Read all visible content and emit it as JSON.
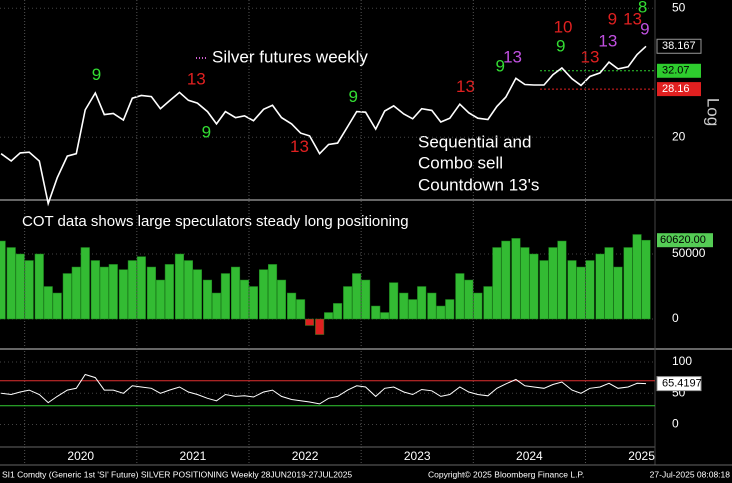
{
  "chart_data": [
    {
      "type": "line",
      "title": "Silver futures weekly",
      "title_marker_color": "#d060d0",
      "log": true,
      "scale_label": "Log",
      "color": "#ffffff",
      "note_lines": [
        "Sequential and",
        "Combo sell",
        "Countdown 13's"
      ],
      "xlim": [
        2019.78,
        2025.62
      ],
      "ylim": [
        13,
        53
      ],
      "yticks": [
        20,
        50
      ],
      "x": [
        2019.79,
        2019.88,
        2019.96,
        2020.04,
        2020.13,
        2020.21,
        2020.29,
        2020.38,
        2020.46,
        2020.54,
        2020.63,
        2020.71,
        2020.79,
        2020.88,
        2020.96,
        2021.04,
        2021.13,
        2021.21,
        2021.29,
        2021.38,
        2021.46,
        2021.54,
        2021.63,
        2021.71,
        2021.79,
        2021.88,
        2021.96,
        2022.04,
        2022.13,
        2022.21,
        2022.29,
        2022.38,
        2022.46,
        2022.54,
        2022.63,
        2022.71,
        2022.79,
        2022.88,
        2022.96,
        2023.04,
        2023.13,
        2023.21,
        2023.29,
        2023.38,
        2023.46,
        2023.54,
        2023.63,
        2023.71,
        2023.79,
        2023.88,
        2023.96,
        2024.04,
        2024.13,
        2024.21,
        2024.29,
        2024.38,
        2024.46,
        2024.54,
        2024.63,
        2024.71,
        2024.79,
        2024.88,
        2024.96,
        2025.04,
        2025.13,
        2025.21,
        2025.29,
        2025.38,
        2025.46,
        2025.54
      ],
      "values": [
        17.8,
        16.9,
        17.9,
        18.0,
        16.9,
        12.5,
        15.0,
        17.5,
        17.8,
        24.3,
        27.4,
        23.5,
        23.7,
        22.6,
        26.4,
        26.9,
        26.7,
        24.5,
        25.9,
        27.5,
        26.0,
        25.5,
        24.0,
        22.0,
        24.0,
        23.0,
        23.3,
        22.5,
        24.4,
        25.1,
        23.0,
        22.0,
        20.6,
        20.2,
        17.8,
        19.0,
        19.2,
        21.6,
        24.0,
        23.9,
        21.2,
        24.1,
        25.0,
        23.6,
        22.8,
        24.5,
        24.2,
        22.3,
        22.9,
        25.3,
        23.8,
        22.9,
        22.7,
        24.9,
        26.6,
        30.4,
        29.1,
        29.0,
        29.0,
        31.2,
        32.7,
        30.3,
        28.9,
        30.8,
        31.6,
        34.1,
        32.5,
        33.0,
        36.0,
        38.167
      ],
      "levels": [
        {
          "value": 32.07,
          "color": "#2ecc2e"
        },
        {
          "value": 28.16,
          "color": "#e02020"
        }
      ],
      "annotations": [
        {
          "text": "9",
          "x": 2020.64,
          "y": 31.0,
          "color": "#33dd33"
        },
        {
          "text": "13",
          "x": 2021.53,
          "y": 30.0,
          "color": "#e02020"
        },
        {
          "text": "9",
          "x": 2021.62,
          "y": 20.6,
          "color": "#33dd33"
        },
        {
          "text": "13",
          "x": 2022.45,
          "y": 18.6,
          "color": "#e02020"
        },
        {
          "text": "9",
          "x": 2022.93,
          "y": 26.5,
          "color": "#33dd33"
        },
        {
          "text": "13",
          "x": 2023.93,
          "y": 28.5,
          "color": "#e02020"
        },
        {
          "text": "9",
          "x": 2024.24,
          "y": 32.9,
          "color": "#33dd33"
        },
        {
          "text": "13",
          "x": 2024.35,
          "y": 35.1,
          "color": "#c050e0"
        },
        {
          "text": "9",
          "x": 2024.78,
          "y": 37.9,
          "color": "#33dd33"
        },
        {
          "text": "10",
          "x": 2024.8,
          "y": 43.4,
          "color": "#e02020"
        },
        {
          "text": "13",
          "x": 2025.04,
          "y": 35.1,
          "color": "#e02020"
        },
        {
          "text": "13",
          "x": 2025.2,
          "y": 39.3,
          "color": "#c050e0"
        },
        {
          "text": "9",
          "x": 2025.24,
          "y": 45.9,
          "color": "#e02020"
        },
        {
          "text": "13",
          "x": 2025.42,
          "y": 45.9,
          "color": "#e02020"
        },
        {
          "text": "8",
          "x": 2025.51,
          "y": 50,
          "color": "#33dd33"
        },
        {
          "text": "9",
          "x": 2025.53,
          "y": 42.8,
          "color": "#c050e0"
        }
      ]
    },
    {
      "type": "bar",
      "title": "COT data shows large speculators steady long positioning",
      "color": "#33bb33",
      "negative_color": "#dd2020",
      "xlim": [
        2019.78,
        2025.62
      ],
      "ylim": [
        -20000,
        90000
      ],
      "yticks": [
        0,
        50000
      ],
      "x": [
        2019.79,
        2019.88,
        2019.96,
        2020.04,
        2020.13,
        2020.21,
        2020.29,
        2020.38,
        2020.46,
        2020.54,
        2020.63,
        2020.71,
        2020.79,
        2020.88,
        2020.96,
        2021.04,
        2021.13,
        2021.21,
        2021.29,
        2021.38,
        2021.46,
        2021.54,
        2021.63,
        2021.71,
        2021.79,
        2021.88,
        2021.96,
        2022.04,
        2022.13,
        2022.21,
        2022.29,
        2022.38,
        2022.46,
        2022.54,
        2022.63,
        2022.71,
        2022.79,
        2022.88,
        2022.96,
        2023.04,
        2023.13,
        2023.21,
        2023.29,
        2023.38,
        2023.46,
        2023.54,
        2023.63,
        2023.71,
        2023.79,
        2023.88,
        2023.96,
        2024.04,
        2024.13,
        2024.21,
        2024.29,
        2024.38,
        2024.46,
        2024.54,
        2024.63,
        2024.71,
        2024.79,
        2024.88,
        2024.96,
        2025.04,
        2025.13,
        2025.21,
        2025.29,
        2025.38,
        2025.46,
        2025.54
      ],
      "values": [
        60000,
        55000,
        50000,
        45000,
        50000,
        25000,
        20000,
        35000,
        40000,
        55000,
        45000,
        40000,
        42000,
        38000,
        45000,
        48000,
        40000,
        30000,
        42000,
        50000,
        45000,
        38000,
        30000,
        20000,
        35000,
        40000,
        30000,
        25000,
        38000,
        42000,
        30000,
        20000,
        15000,
        -5000,
        -12000,
        5000,
        12000,
        25000,
        35000,
        30000,
        10000,
        5000,
        28000,
        20000,
        15000,
        25000,
        20000,
        10000,
        15000,
        35000,
        30000,
        20000,
        25000,
        55000,
        60000,
        62000,
        55000,
        50000,
        45000,
        55000,
        60000,
        45000,
        40000,
        45000,
        50000,
        55000,
        40000,
        55000,
        65000,
        60620
      ],
      "value_labels": [
        null,
        null,
        null,
        null,
        null,
        null,
        null,
        null,
        null,
        null,
        null,
        null,
        null,
        null,
        null,
        null,
        null,
        null,
        null,
        null,
        null,
        null,
        null,
        null,
        null,
        null,
        null,
        null,
        null,
        null,
        null,
        null,
        null,
        null,
        null,
        null,
        null,
        null,
        null,
        null,
        null,
        null,
        null,
        null,
        null,
        null,
        null,
        null,
        null,
        null,
        null,
        null,
        null,
        null,
        null,
        null,
        null,
        null,
        null,
        null,
        null,
        null,
        null,
        null,
        null,
        null,
        null,
        null,
        null,
        "60620.00"
      ]
    },
    {
      "type": "line",
      "color": "#ffffff",
      "xlim": [
        2019.78,
        2025.62
      ],
      "ylim": [
        -36,
        116
      ],
      "yticks": [
        0,
        50,
        100
      ],
      "xticks": [
        2020,
        2021,
        2022,
        2023,
        2024,
        2025
      ],
      "levels": [
        {
          "value": 70,
          "color": "#e03030"
        },
        {
          "value": 30,
          "color": "#33cc33"
        }
      ],
      "x": [
        2019.79,
        2019.88,
        2019.96,
        2020.04,
        2020.13,
        2020.21,
        2020.29,
        2020.38,
        2020.46,
        2020.54,
        2020.63,
        2020.71,
        2020.79,
        2020.88,
        2020.96,
        2021.04,
        2021.13,
        2021.21,
        2021.29,
        2021.38,
        2021.46,
        2021.54,
        2021.63,
        2021.71,
        2021.79,
        2021.88,
        2021.96,
        2022.04,
        2022.13,
        2022.21,
        2022.29,
        2022.38,
        2022.46,
        2022.54,
        2022.63,
        2022.71,
        2022.79,
        2022.88,
        2022.96,
        2023.04,
        2023.13,
        2023.21,
        2023.29,
        2023.38,
        2023.46,
        2023.54,
        2023.63,
        2023.71,
        2023.79,
        2023.88,
        2023.96,
        2024.04,
        2024.13,
        2024.21,
        2024.29,
        2024.38,
        2024.46,
        2024.54,
        2024.63,
        2024.71,
        2024.79,
        2024.88,
        2024.96,
        2025.04,
        2025.13,
        2025.21,
        2025.29,
        2025.38,
        2025.46,
        2025.54
      ],
      "values": [
        50,
        48,
        52,
        55,
        48,
        35,
        45,
        55,
        58,
        80,
        75,
        55,
        55,
        50,
        62,
        60,
        58,
        50,
        55,
        60,
        52,
        48,
        42,
        38,
        48,
        45,
        46,
        44,
        52,
        55,
        45,
        40,
        38,
        36,
        33,
        42,
        45,
        55,
        62,
        60,
        45,
        58,
        60,
        52,
        48,
        56,
        54,
        45,
        48,
        60,
        52,
        48,
        46,
        58,
        65,
        72,
        62,
        60,
        58,
        64,
        68,
        55,
        50,
        58,
        60,
        66,
        58,
        60,
        66,
        65.4197
      ]
    }
  ],
  "footer": {
    "left": "SI1 Comdty (Generic 1st 'SI' Future) SILVER POSITIONING  Weekly 28JUN2019-27JUL2025",
    "center": "Copyright© 2025 Bloomberg Finance L.P.",
    "right": "27-Jul-2025 08:08:18"
  }
}
